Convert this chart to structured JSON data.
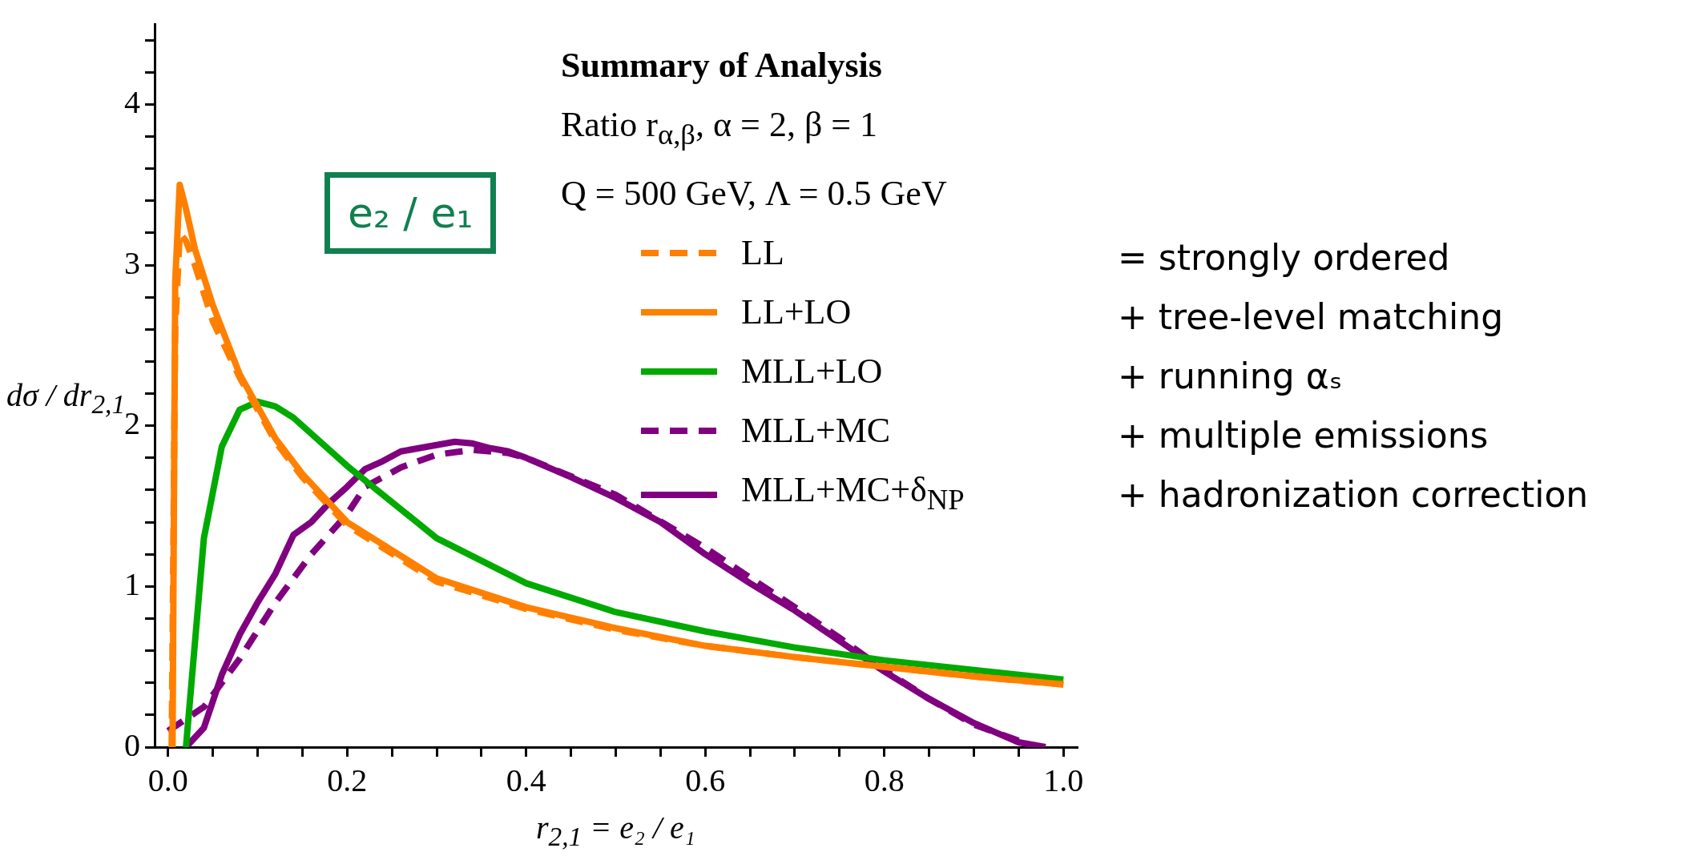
{
  "chart_data": {
    "type": "line",
    "xlabel": "r$_{2,1}$ = e₂ / e₁",
    "ylabel": "dσ / dr$_{2,1}$",
    "legend_title": "Summary of Analysis",
    "annotations": [
      "Ratio r$_{α,β}$, α = 2, β = 1",
      "Q = 500 GeV, Λ = 0.5 GeV",
      "e₂ / e₁",
      "= strongly ordered",
      "+ tree-level matching",
      "+ running αₛ",
      "+ multiple emissions",
      "+ hadronization correction"
    ],
    "xlim": [
      -0.015,
      1.015
    ],
    "ylim": [
      0,
      4.5
    ],
    "xticks": [
      {
        "value": 0,
        "label": "0.0"
      },
      {
        "value": 0.05,
        "label": null
      },
      {
        "value": 0.1,
        "label": null
      },
      {
        "value": 0.15,
        "label": null
      },
      {
        "value": 0.2,
        "label": "0.2"
      },
      {
        "value": 0.25,
        "label": null
      },
      {
        "value": 0.3,
        "label": null
      },
      {
        "value": 0.35,
        "label": null
      },
      {
        "value": 0.4,
        "label": "0.4"
      },
      {
        "value": 0.45,
        "label": null
      },
      {
        "value": 0.5,
        "label": null
      },
      {
        "value": 0.55,
        "label": null
      },
      {
        "value": 0.6,
        "label": "0.6"
      },
      {
        "value": 0.65,
        "label": null
      },
      {
        "value": 0.7,
        "label": null
      },
      {
        "value": 0.75,
        "label": null
      },
      {
        "value": 0.8,
        "label": "0.8"
      },
      {
        "value": 0.85,
        "label": null
      },
      {
        "value": 0.9,
        "label": null
      },
      {
        "value": 0.95,
        "label": null
      },
      {
        "value": 1,
        "label": "1.0"
      }
    ],
    "yticks": [
      0,
      {
        "value": 0.2,
        "label": null
      },
      {
        "value": 0.4,
        "label": null
      },
      {
        "value": 0.6,
        "label": null
      },
      {
        "value": 0.8,
        "label": null
      },
      1,
      {
        "value": 1.2,
        "label": null
      },
      {
        "value": 1.4,
        "label": null
      },
      {
        "value": 1.6,
        "label": null
      },
      {
        "value": 1.8,
        "label": null
      },
      2,
      {
        "value": 2.2,
        "label": null
      },
      {
        "value": 2.4,
        "label": null
      },
      {
        "value": 2.6,
        "label": null
      },
      {
        "value": 2.8,
        "label": null
      },
      3,
      {
        "value": 3.2,
        "label": null
      },
      {
        "value": 3.4,
        "label": null
      },
      {
        "value": 3.6,
        "label": null
      },
      {
        "value": 3.8,
        "label": null
      },
      4,
      {
        "value": 4.2,
        "label": null
      },
      {
        "value": 4.4,
        "label": null
      }
    ],
    "grid": false,
    "legend": "right",
    "marker": "none",
    "series": [
      {
        "name": "LL",
        "color": "#ff8000",
        "line_style": "dashed",
        "x": [
          0.004,
          0.008,
          0.013,
          0.02,
          0.03,
          0.05,
          0.08,
          0.12,
          0.15,
          0.2,
          0.3,
          0.4,
          0.5,
          0.6,
          0.7,
          0.8,
          0.9,
          1.0
        ],
        "values": [
          0,
          2.6,
          3.2,
          3.15,
          3.0,
          2.65,
          2.3,
          1.9,
          1.68,
          1.38,
          1.03,
          0.86,
          0.73,
          0.63,
          0.56,
          0.5,
          0.44,
          0.39
        ]
      },
      {
        "name": "LL+LO",
        "color": "#ff8000",
        "line_style": "solid",
        "x": [
          0.005,
          0.008,
          0.013,
          0.02,
          0.03,
          0.05,
          0.08,
          0.12,
          0.15,
          0.2,
          0.3,
          0.4,
          0.5,
          0.6,
          0.7,
          0.8,
          0.9,
          1.0
        ],
        "values": [
          0,
          2.9,
          3.5,
          3.35,
          3.1,
          2.75,
          2.32,
          1.92,
          1.7,
          1.4,
          1.05,
          0.87,
          0.74,
          0.63,
          0.56,
          0.5,
          0.44,
          0.39
        ]
      },
      {
        "name": "MLL+LO",
        "color": "#00aa00",
        "line_style": "solid",
        "x": [
          0.02,
          0.04,
          0.06,
          0.08,
          0.1,
          0.12,
          0.14,
          0.2,
          0.3,
          0.4,
          0.5,
          0.6,
          0.7,
          0.8,
          0.9,
          1.0
        ],
        "values": [
          0,
          1.3,
          1.87,
          2.1,
          2.15,
          2.12,
          2.05,
          1.75,
          1.3,
          1.02,
          0.84,
          0.72,
          0.62,
          0.54,
          0.48,
          0.42
        ]
      },
      {
        "name": "MLL+MC",
        "color": "#800080",
        "line_style": "dashed",
        "x": [
          0,
          0.04,
          0.08,
          0.12,
          0.16,
          0.2,
          0.22,
          0.26,
          0.3,
          0.34,
          0.38,
          0.4,
          0.5,
          0.6,
          0.7,
          0.75,
          0.8,
          0.85,
          0.9,
          0.95,
          0.97
        ],
        "values": [
          0.1,
          0.25,
          0.55,
          0.9,
          1.2,
          1.45,
          1.62,
          1.74,
          1.82,
          1.85,
          1.83,
          1.8,
          1.57,
          1.24,
          0.87,
          0.68,
          0.48,
          0.3,
          0.14,
          0.04,
          0
        ]
      },
      {
        "name": "MLL+MC+δ$_{NP}$",
        "color": "#800080",
        "line_style": "solid",
        "x": [
          0.02,
          0.04,
          0.06,
          0.08,
          0.1,
          0.12,
          0.14,
          0.16,
          0.18,
          0.2,
          0.22,
          0.24,
          0.26,
          0.28,
          0.3,
          0.32,
          0.34,
          0.36,
          0.38,
          0.4,
          0.45,
          0.5,
          0.55,
          0.6,
          0.65,
          0.7,
          0.75,
          0.8,
          0.85,
          0.9,
          0.95,
          0.98
        ],
        "values": [
          0,
          0.12,
          0.45,
          0.7,
          0.9,
          1.08,
          1.32,
          1.4,
          1.52,
          1.62,
          1.73,
          1.78,
          1.84,
          1.86,
          1.88,
          1.9,
          1.89,
          1.86,
          1.84,
          1.8,
          1.68,
          1.55,
          1.4,
          1.2,
          1.02,
          0.85,
          0.66,
          0.47,
          0.3,
          0.15,
          0.03,
          0
        ]
      }
    ]
  }
}
